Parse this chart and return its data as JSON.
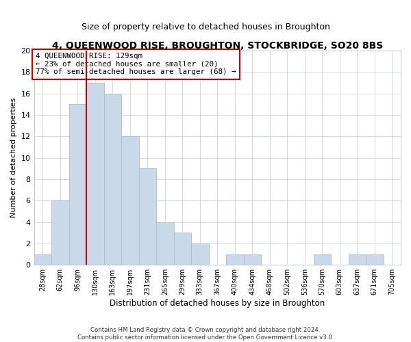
{
  "title": "4, QUEENWOOD RISE, BROUGHTON, STOCKBRIDGE, SO20 8BS",
  "subtitle": "Size of property relative to detached houses in Broughton",
  "xlabel": "Distribution of detached houses by size in Broughton",
  "ylabel": "Number of detached properties",
  "bar_color": "#c9d9ea",
  "bar_edge_color": "#aabcce",
  "bin_labels": [
    "28sqm",
    "62sqm",
    "96sqm",
    "130sqm",
    "163sqm",
    "197sqm",
    "231sqm",
    "265sqm",
    "299sqm",
    "333sqm",
    "367sqm",
    "400sqm",
    "434sqm",
    "468sqm",
    "502sqm",
    "536sqm",
    "570sqm",
    "603sqm",
    "637sqm",
    "671sqm",
    "705sqm"
  ],
  "bar_heights": [
    1,
    6,
    15,
    17,
    16,
    12,
    9,
    4,
    3,
    2,
    0,
    1,
    1,
    0,
    0,
    0,
    1,
    0,
    1,
    1,
    0
  ],
  "ylim": [
    0,
    20
  ],
  "yticks": [
    0,
    2,
    4,
    6,
    8,
    10,
    12,
    14,
    16,
    18,
    20
  ],
  "vline_color": "#cc0000",
  "annotation_box_text": "4 QUEENWOOD RISE: 129sqm\n← 23% of detached houses are smaller (20)\n77% of semi-detached houses are larger (68) →",
  "annotation_box_facecolor": "#ffffff",
  "annotation_box_edgecolor": "#cc0000",
  "footer_line1": "Contains HM Land Registry data © Crown copyright and database right 2024.",
  "footer_line2": "Contains public sector information licensed under the Open Government Licence v3.0.",
  "background_color": "#ffffff",
  "grid_color": "#d0dae4",
  "title_fontsize": 10,
  "subtitle_fontsize": 9,
  "ylabel_fontsize": 8,
  "xlabel_fontsize": 8.5
}
